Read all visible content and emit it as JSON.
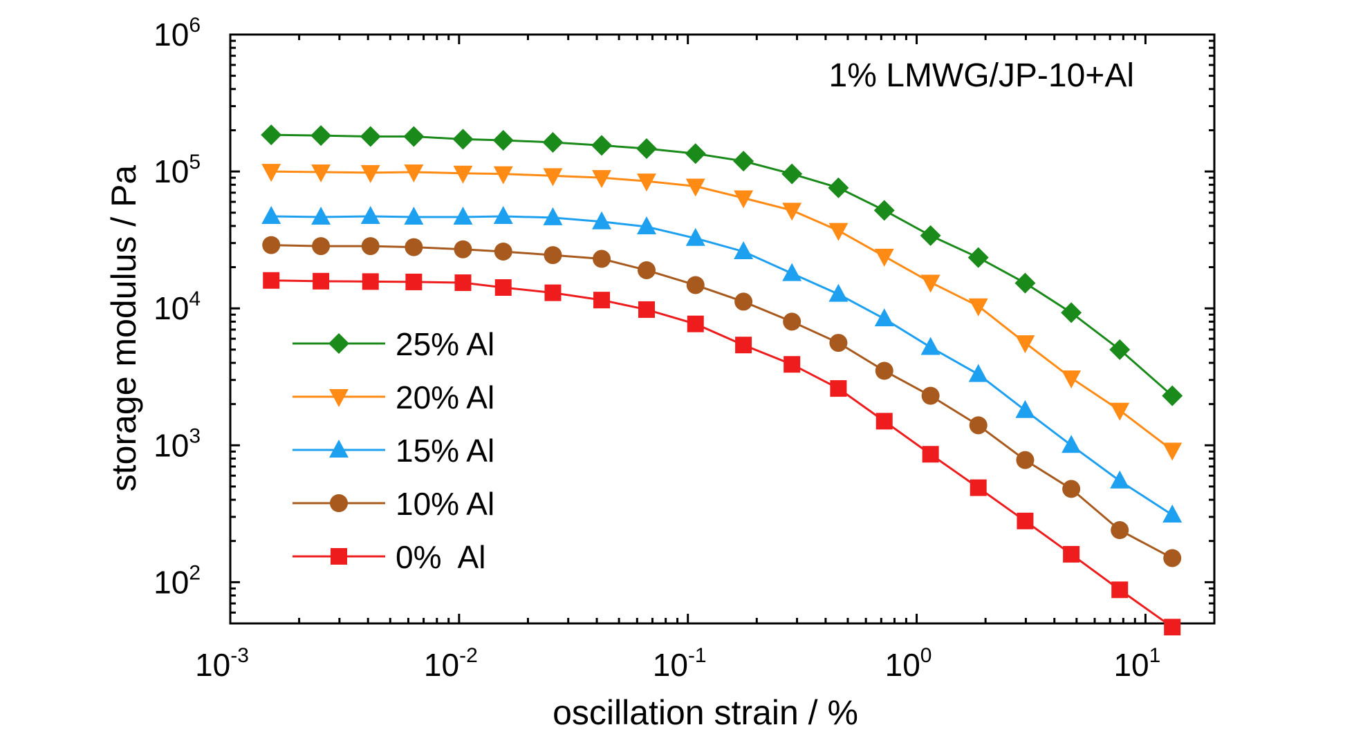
{
  "chart_data": {
    "type": "line",
    "title": "",
    "annotation": "1% LMWG/JP-10+Al",
    "xlabel": "oscillation strain / %",
    "ylabel": "storage modulus / Pa",
    "xscale": "log",
    "yscale": "log",
    "xlim": [
      0.001,
      20
    ],
    "ylim": [
      50,
      1000000
    ],
    "x_ticks": [
      {
        "base": "10",
        "exp": "-3",
        "value": 0.001
      },
      {
        "base": "10",
        "exp": "-2",
        "value": 0.01
      },
      {
        "base": "10",
        "exp": "-1",
        "value": 0.1
      },
      {
        "base": "10",
        "exp": "0",
        "value": 1
      },
      {
        "base": "10",
        "exp": "1",
        "value": 10
      }
    ],
    "y_ticks": [
      {
        "base": "10",
        "exp": "2",
        "value": 100
      },
      {
        "base": "10",
        "exp": "3",
        "value": 1000
      },
      {
        "base": "10",
        "exp": "4",
        "value": 10000
      },
      {
        "base": "10",
        "exp": "5",
        "value": 100000
      },
      {
        "base": "10",
        "exp": "6",
        "value": 1000000
      }
    ],
    "grid": false,
    "legend_position": "bottom-left",
    "x": [
      0.00151,
      0.00249,
      0.0041,
      0.00634,
      0.0104,
      0.0156,
      0.0257,
      0.042,
      0.066,
      0.108,
      0.175,
      0.285,
      0.455,
      0.722,
      1.15,
      1.86,
      2.98,
      4.74,
      7.72,
      13.1
    ],
    "series": [
      {
        "name": "25% Al",
        "marker": "diamond",
        "color": "#1a8a1a",
        "values": [
          185000,
          183000,
          180000,
          180000,
          172000,
          169000,
          163000,
          155000,
          147000,
          135000,
          119000,
          96000,
          76000,
          52000,
          34000,
          23500,
          15300,
          9300,
          5000,
          2300
        ]
      },
      {
        "name": "20% Al",
        "marker": "triangle-down",
        "color": "#ff8a14",
        "values": [
          100000,
          99000,
          98000,
          99000,
          97000,
          96000,
          93000,
          90000,
          85000,
          78000,
          64000,
          52000,
          37000,
          24000,
          15500,
          10400,
          5600,
          3100,
          1800,
          920
        ]
      },
      {
        "name": "15% Al",
        "marker": "triangle-up",
        "color": "#1ea0f0",
        "values": [
          47000,
          46500,
          47000,
          46500,
          46500,
          47000,
          46000,
          43000,
          39500,
          32500,
          26000,
          18000,
          12700,
          8400,
          5200,
          3300,
          1800,
          1000,
          550,
          310
        ]
      },
      {
        "name": "10% Al",
        "marker": "circle",
        "color": "#a85a1e",
        "values": [
          29000,
          28500,
          28500,
          28000,
          27000,
          26000,
          24500,
          23000,
          19000,
          14800,
          11200,
          8000,
          5600,
          3500,
          2300,
          1400,
          780,
          480,
          240,
          150
        ]
      },
      {
        "name": "0%  Al",
        "marker": "square",
        "color": "#ee1c1c",
        "values": [
          16000,
          15800,
          15700,
          15600,
          15400,
          14200,
          13000,
          11500,
          9800,
          7700,
          5400,
          3900,
          2600,
          1500,
          860,
          490,
          280,
          160,
          88,
          47
        ]
      }
    ]
  }
}
